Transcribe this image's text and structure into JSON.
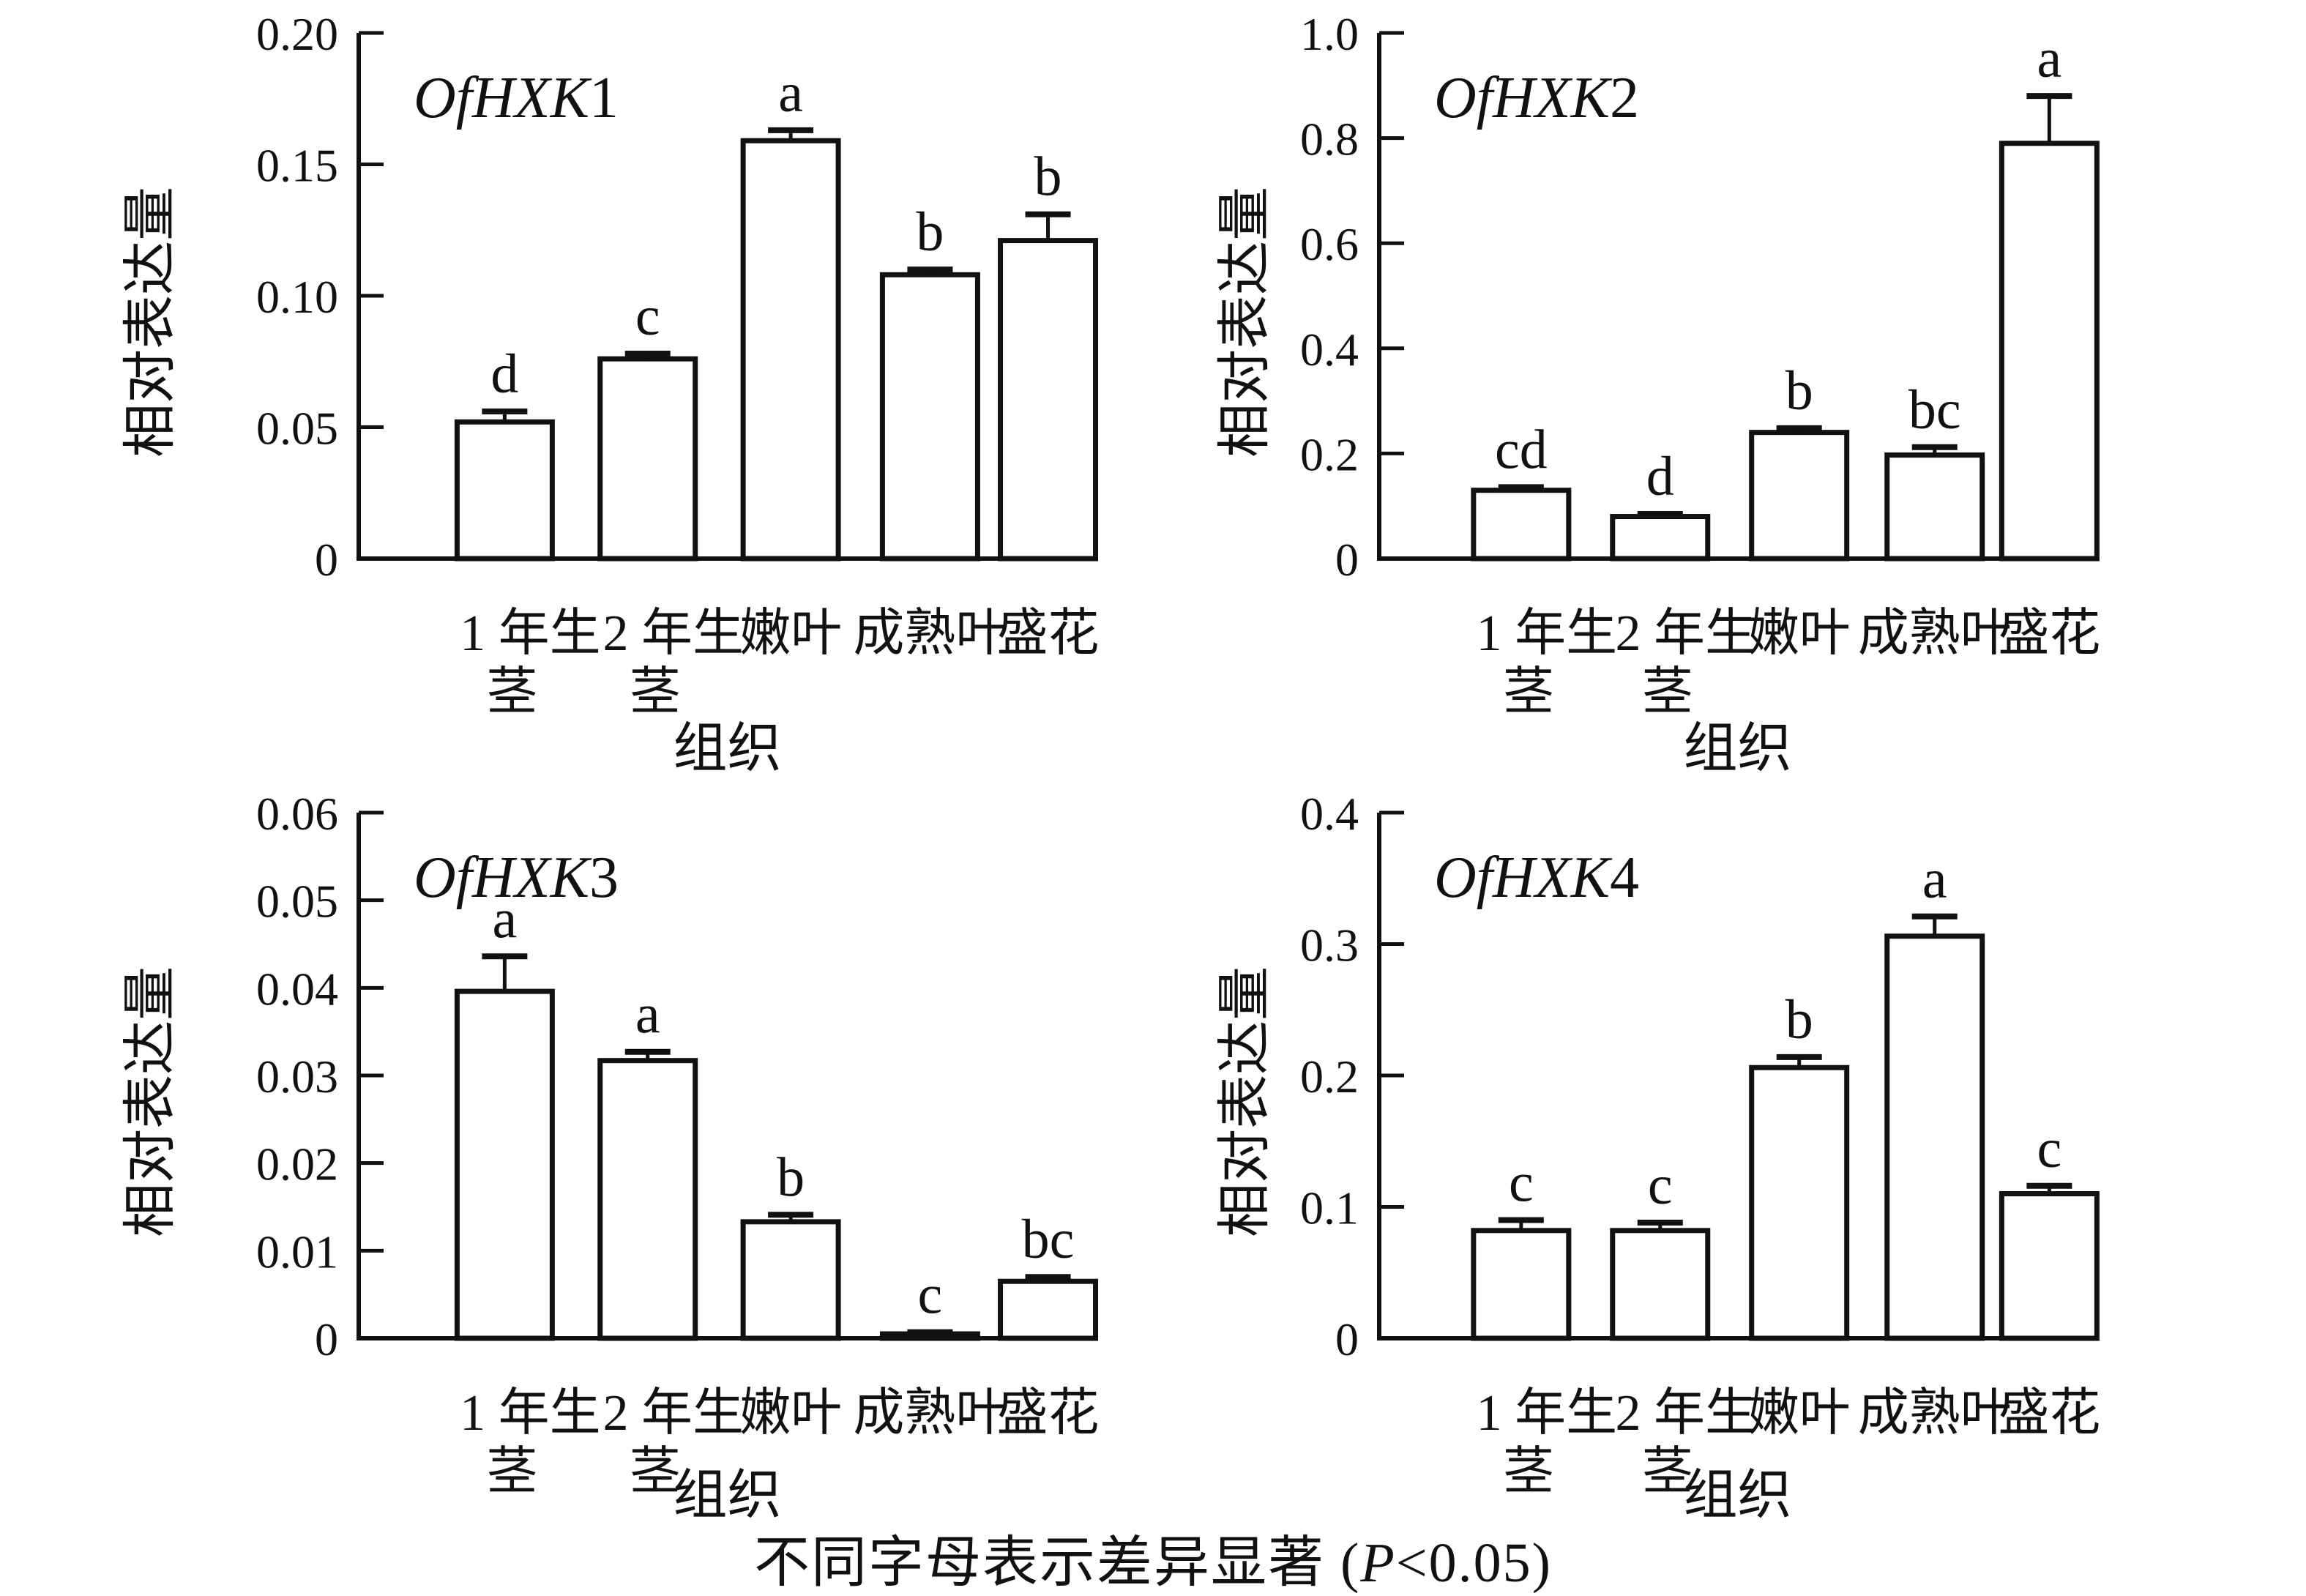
{
  "figure": {
    "y_axis_title": "相对表达量",
    "x_axis_title": "组织",
    "caption": {
      "prefix": "不同字母表示差异显著 (",
      "p": "P",
      "suffix": "<0.05)"
    }
  },
  "category_display": [
    [
      "1 年生",
      "茎"
    ],
    [
      "2 年生",
      "茎"
    ],
    [
      "嫩叶"
    ],
    [
      "成熟叶"
    ],
    [
      "盛花"
    ]
  ],
  "chart_data": [
    {
      "type": "bar",
      "title": "OfHXK1",
      "title_parts": {
        "italic": "OfHXK",
        "upright": "1"
      },
      "categories": [
        "1年生茎",
        "2年生茎",
        "嫩叶",
        "成熟叶",
        "盛花"
      ],
      "values": [
        0.052,
        0.076,
        0.159,
        0.108,
        0.121
      ],
      "errors": [
        0.004,
        0.002,
        0.004,
        0.002,
        0.01
      ],
      "sig_letters": [
        "d",
        "c",
        "a",
        "b",
        "b"
      ],
      "xlabel": "组织",
      "ylabel": "相对表达量",
      "ylim": [
        0,
        0.2
      ],
      "ytick_labels": [
        "0",
        "0.05",
        "0.10",
        "0.15",
        "0.20"
      ],
      "grid": false,
      "legend": "none",
      "bar_fill": "#ffffff",
      "bar_stroke": "#111111"
    },
    {
      "type": "bar",
      "title": "OfHXK2",
      "title_parts": {
        "italic": "OfHXK",
        "upright": "2"
      },
      "categories": [
        "1年生茎",
        "2年生茎",
        "嫩叶",
        "成熟叶",
        "盛花"
      ],
      "values": [
        0.13,
        0.08,
        0.24,
        0.197,
        0.79
      ],
      "errors": [
        0.006,
        0.005,
        0.008,
        0.015,
        0.09
      ],
      "sig_letters": [
        "cd",
        "d",
        "b",
        "bc",
        "a"
      ],
      "xlabel": "组织",
      "ylabel": "相对表达量",
      "ylim": [
        0,
        1.0
      ],
      "ytick_labels": [
        "0",
        "0.2",
        "0.4",
        "0.6",
        "0.8",
        "1.0"
      ],
      "grid": false,
      "legend": "none",
      "bar_fill": "#ffffff",
      "bar_stroke": "#111111"
    },
    {
      "type": "bar",
      "title": "OfHXK3",
      "title_parts": {
        "italic": "OfHXK",
        "upright": "3"
      },
      "categories": [
        "1年生茎",
        "2年生茎",
        "嫩叶",
        "成熟叶",
        "盛花"
      ],
      "values": [
        0.0396,
        0.0317,
        0.0133,
        0.0005,
        0.0065
      ],
      "errors": [
        0.004,
        0.001,
        0.0008,
        0.0002,
        0.0005
      ],
      "sig_letters": [
        "a",
        "a",
        "b",
        "c",
        "bc"
      ],
      "xlabel": "组织",
      "ylabel": "相对表达量",
      "ylim": [
        0,
        0.06
      ],
      "ytick_labels": [
        "0",
        "0.01",
        "0.02",
        "0.03",
        "0.04",
        "0.05",
        "0.06"
      ],
      "grid": false,
      "legend": "none",
      "bar_fill": "#ffffff",
      "bar_stroke": "#111111"
    },
    {
      "type": "bar",
      "title": "OfHXK4",
      "title_parts": {
        "italic": "OfHXK",
        "upright": "4"
      },
      "categories": [
        "1年生茎",
        "2年生茎",
        "嫩叶",
        "成熟叶",
        "盛花"
      ],
      "values": [
        0.082,
        0.082,
        0.206,
        0.306,
        0.11
      ],
      "errors": [
        0.008,
        0.006,
        0.008,
        0.015,
        0.006
      ],
      "sig_letters": [
        "c",
        "c",
        "b",
        "a",
        "c"
      ],
      "xlabel": "组织",
      "ylabel": "相对表达量",
      "ylim": [
        0,
        0.4
      ],
      "ytick_labels": [
        "0",
        "0.1",
        "0.2",
        "0.3",
        "0.4"
      ],
      "grid": false,
      "legend": "none",
      "bar_fill": "#ffffff",
      "bar_stroke": "#111111"
    }
  ]
}
